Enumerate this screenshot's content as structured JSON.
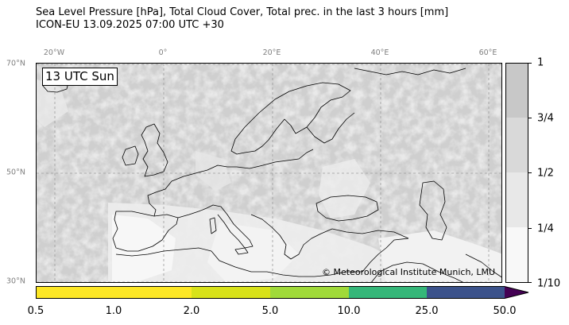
{
  "title": {
    "line1": "Sea Level Pressure [hPa], Total Cloud Cover, Total prec. in the last 3 hours [mm]",
    "line2": "ICON-EU 13.09.2025 07:00 UTC +30"
  },
  "map": {
    "time_label": "13 UTC Sun",
    "copyright": "© Meteorological Institute Munich, LMU",
    "lon_labels": [
      "20°W",
      "0°",
      "20°E",
      "40°E",
      "60°E"
    ],
    "lat_labels": [
      "70°N",
      "50°N",
      "30°N"
    ],
    "grid": true,
    "extent": {
      "lon": [
        -23.5,
        62.5
      ],
      "lat": [
        29.5,
        70.5
      ]
    }
  },
  "cloud_colorbar": {
    "labels": [
      "1",
      "3/4",
      "1/2",
      "1/4",
      "1/10"
    ],
    "colors": [
      "#c8c8c8",
      "#d9d9d9",
      "#e8e8e8",
      "#f8f8f8"
    ]
  },
  "precip_colorbar": {
    "labels": [
      "0.5",
      "1.0",
      "2.0",
      "5.0",
      "10.0",
      "25.0",
      "50.0"
    ],
    "colors": [
      "#fde725",
      "#fde725",
      "#d8e219",
      "#a0da39",
      "#35b779",
      "#3b528b",
      "#440154"
    ]
  }
}
